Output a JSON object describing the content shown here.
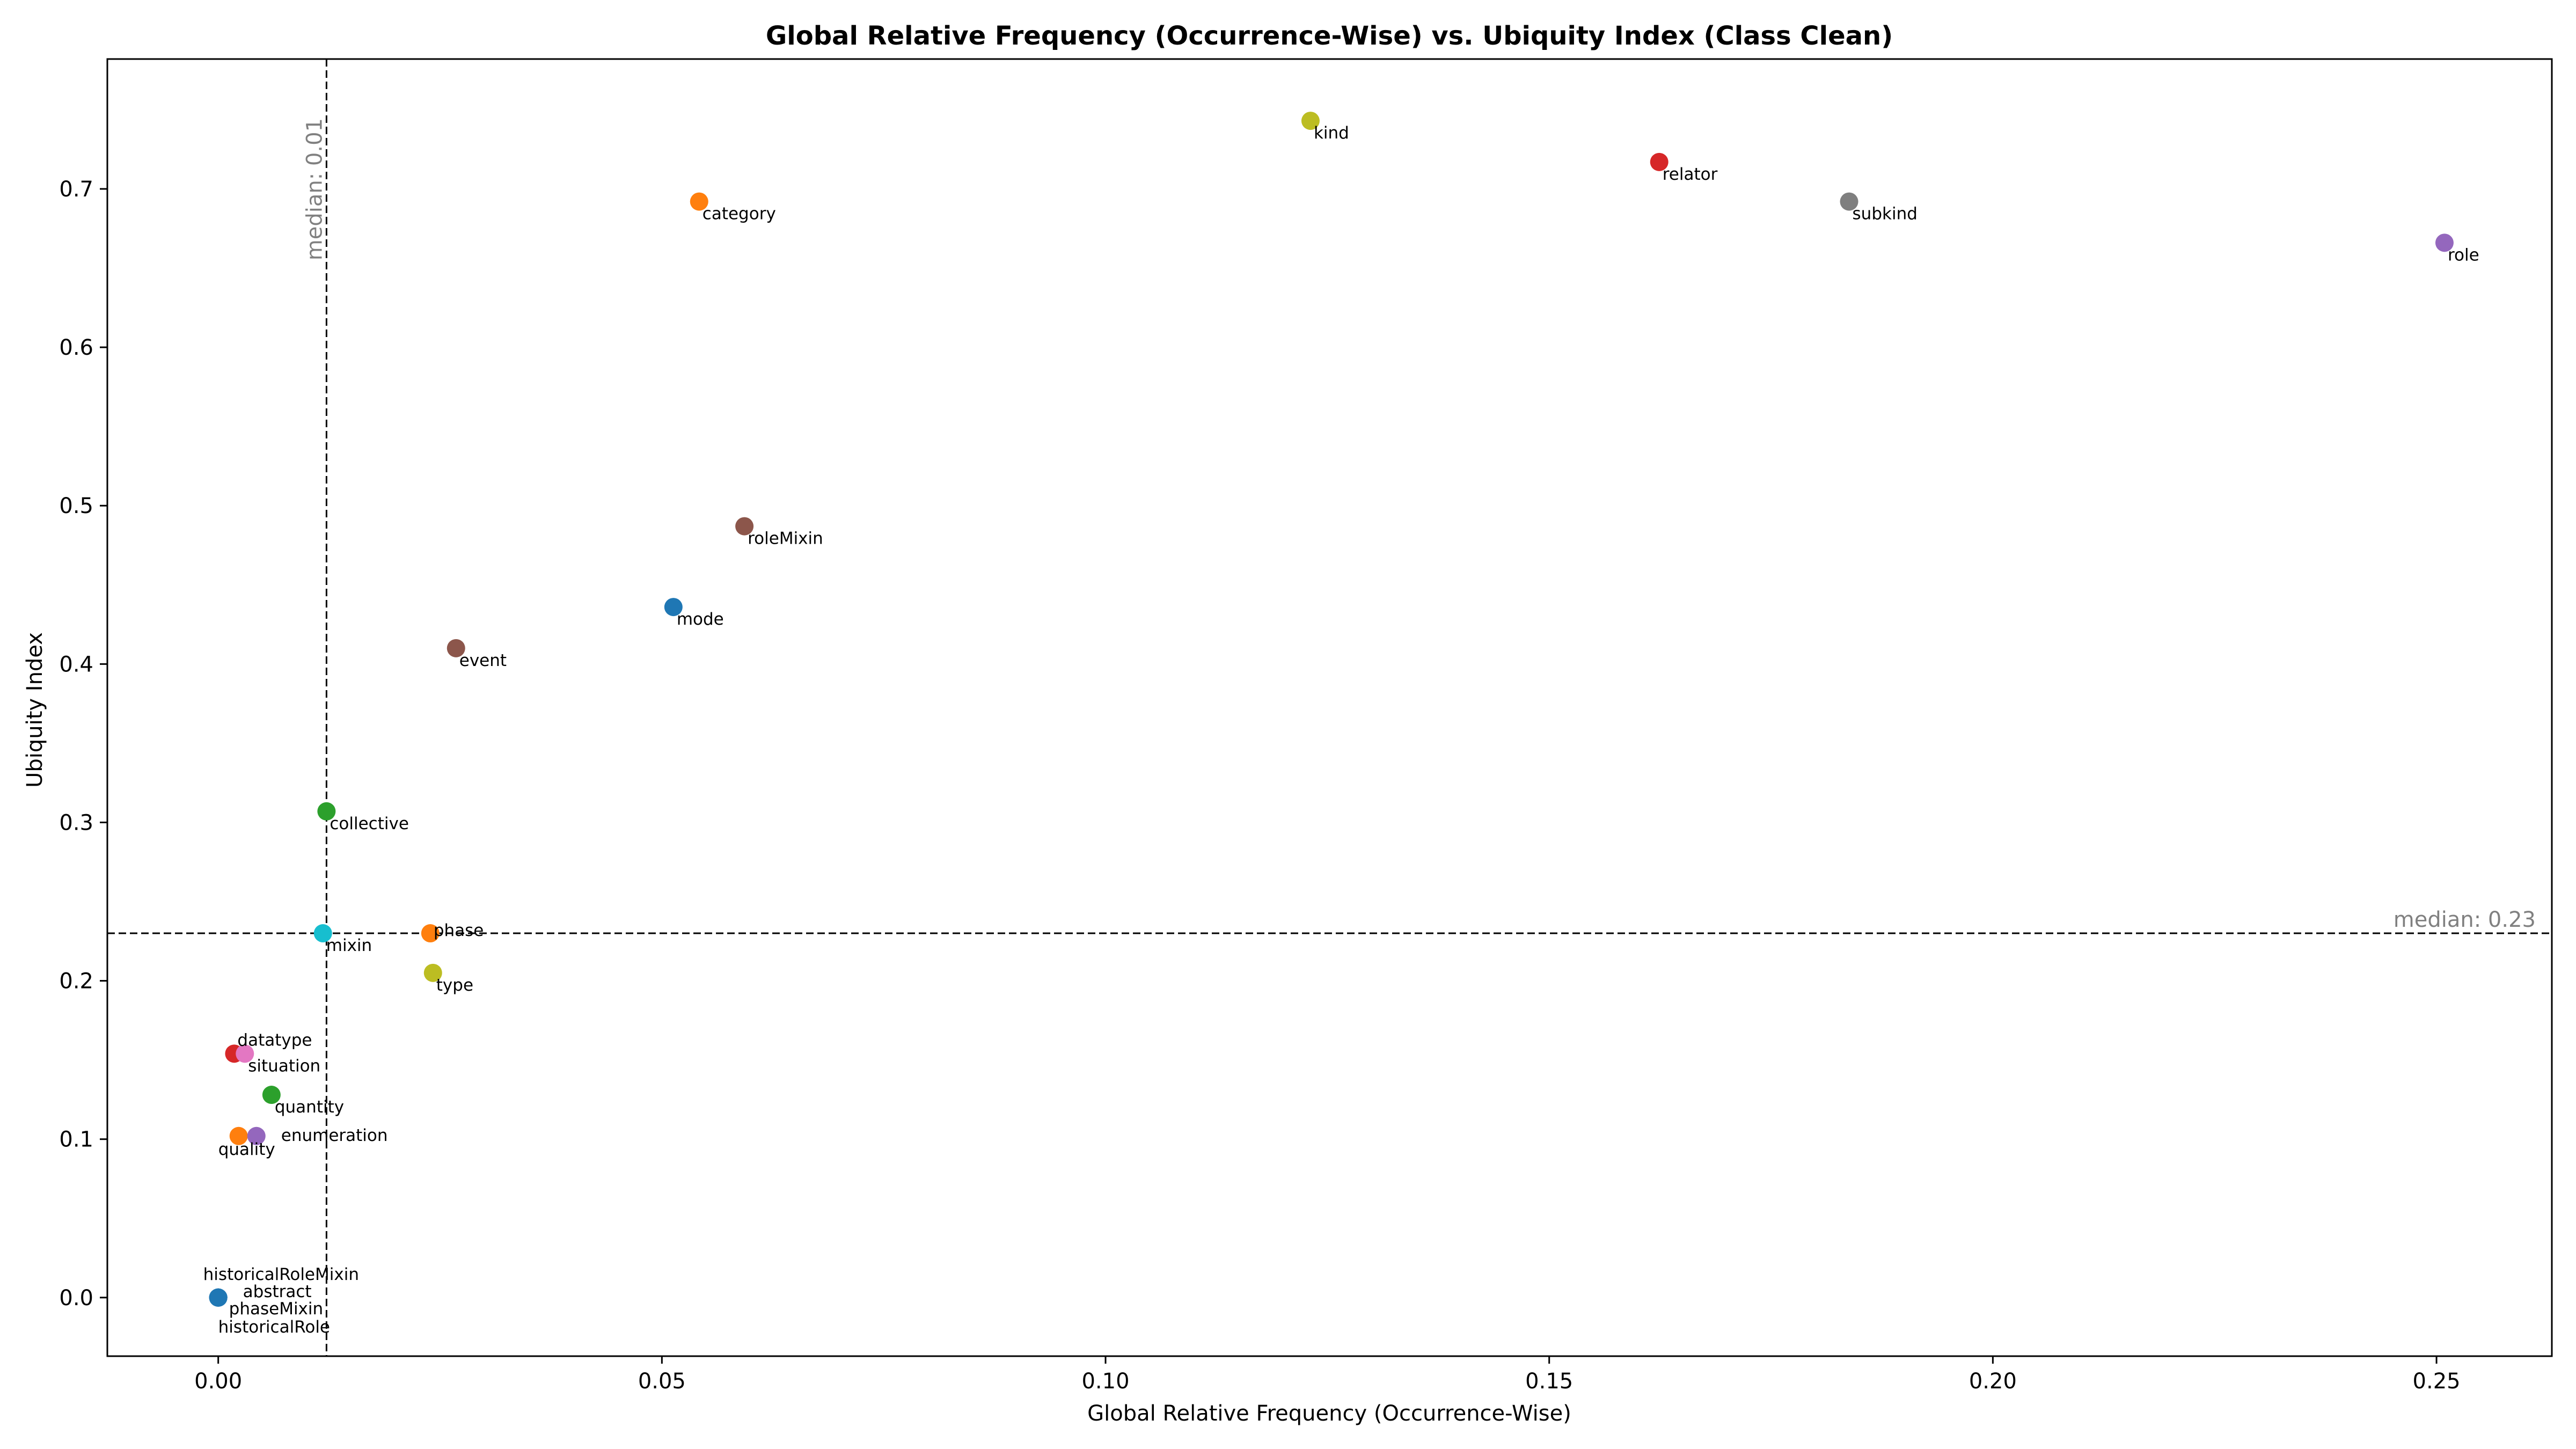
{
  "chart_data": {
    "type": "scatter",
    "title": "Global Relative Frequency (Occurrence-Wise) vs. Ubiquity Index (Class Clean)",
    "xlabel": "Global Relative Frequency (Occurrence-Wise)",
    "ylabel": "Ubiquity Index",
    "xlim": [
      -0.0125,
      0.263
    ],
    "ylim": [
      -0.037,
      0.782
    ],
    "xticks": [
      "0.00",
      "0.05",
      "0.10",
      "0.15",
      "0.20",
      "0.25"
    ],
    "yticks": [
      "0.0",
      "0.1",
      "0.2",
      "0.3",
      "0.4",
      "0.5",
      "0.6",
      "0.7"
    ],
    "grid": false,
    "median_lines": [
      {
        "axis": "x",
        "value": 0.0122,
        "label": "median: 0.01"
      },
      {
        "axis": "y",
        "value": 0.23,
        "label": "median: 0.23"
      }
    ],
    "points": [
      {
        "label": "kind",
        "x": 0.1231,
        "y": 0.743,
        "color": "#bcbd22"
      },
      {
        "label": "relator",
        "x": 0.1624,
        "y": 0.717,
        "color": "#d62728"
      },
      {
        "label": "category",
        "x": 0.0542,
        "y": 0.692,
        "color": "#ff7f0e"
      },
      {
        "label": "subkind",
        "x": 0.1838,
        "y": 0.692,
        "color": "#7f7f7f"
      },
      {
        "label": "role",
        "x": 0.2509,
        "y": 0.666,
        "color": "#9467bd"
      },
      {
        "label": "roleMixin",
        "x": 0.0593,
        "y": 0.487,
        "color": "#8c564b"
      },
      {
        "label": "mode",
        "x": 0.0513,
        "y": 0.436,
        "color": "#1f77b4"
      },
      {
        "label": "event",
        "x": 0.0268,
        "y": 0.41,
        "color": "#8c564b"
      },
      {
        "label": "collective",
        "x": 0.0122,
        "y": 0.307,
        "color": "#2ca02c"
      },
      {
        "label": "mixin",
        "x": 0.0118,
        "y": 0.23,
        "color": "#17becf"
      },
      {
        "label": "phase",
        "x": 0.0239,
        "y": 0.23,
        "color": "#ff7f0e"
      },
      {
        "label": "type",
        "x": 0.0242,
        "y": 0.205,
        "color": "#bcbd22"
      },
      {
        "label": "datatype",
        "x": 0.0018,
        "y": 0.154,
        "color": "#d62728"
      },
      {
        "label": "situation",
        "x": 0.003,
        "y": 0.154,
        "color": "#e377c2"
      },
      {
        "label": "quantity",
        "x": 0.006,
        "y": 0.128,
        "color": "#2ca02c"
      },
      {
        "label": "quality",
        "x": 0.0023,
        "y": 0.102,
        "color": "#ff7f0e"
      },
      {
        "label": "enumeration",
        "x": 0.0043,
        "y": 0.102,
        "color": "#9467bd"
      },
      {
        "label": "historicalRoleMixin",
        "x": 0.0,
        "y": 0.0,
        "color": "#1f77b4"
      },
      {
        "label": "abstract",
        "x": 0.0,
        "y": 0.0,
        "color": "#1f77b4"
      },
      {
        "label": "phaseMixin",
        "x": 0.0,
        "y": 0.0,
        "color": "#1f77b4"
      },
      {
        "label": "historicalRole",
        "x": 0.0,
        "y": 0.0,
        "color": "#1f77b4"
      }
    ]
  }
}
